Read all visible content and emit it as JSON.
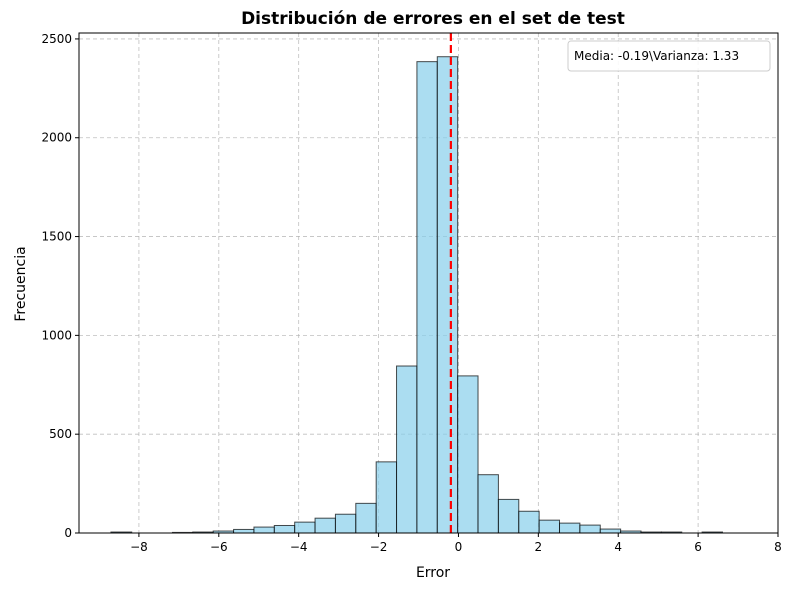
{
  "chart_data": {
    "type": "bar",
    "title": "Distribución de errores en el set de test",
    "xlabel": "Error",
    "ylabel": "Frecuencia",
    "xlim": [
      -9.5,
      8.0
    ],
    "ylim": [
      0,
      2530
    ],
    "xticks": [
      -8,
      -6,
      -4,
      -2,
      0,
      2,
      4,
      6,
      8
    ],
    "yticks": [
      0,
      500,
      1000,
      1500,
      2000,
      2500
    ],
    "grid": true,
    "bins": {
      "edges": [
        -8.7,
        -8.18,
        -7.67,
        -7.16,
        -6.65,
        -6.14,
        -5.63,
        -5.12,
        -4.61,
        -4.1,
        -3.59,
        -3.08,
        -2.57,
        -2.06,
        -1.55,
        -1.04,
        -0.53,
        -0.02,
        0.49,
        1.0,
        1.51,
        2.02,
        2.53,
        3.04,
        3.55,
        4.06,
        4.57,
        5.08,
        5.59,
        6.1,
        6.61,
        7.12,
        7.63
      ],
      "counts": [
        5,
        0,
        0,
        3,
        5,
        10,
        18,
        30,
        38,
        55,
        75,
        95,
        150,
        360,
        845,
        2385,
        2410,
        795,
        295,
        170,
        110,
        65,
        50,
        40,
        20,
        10,
        5,
        5,
        0,
        5,
        0,
        0
      ]
    },
    "mean_line": {
      "x": -0.19,
      "color": "#ff0000"
    },
    "legend": {
      "placement": "top-right",
      "text": "Media: -0.19\\Varianza: 1.33"
    }
  }
}
